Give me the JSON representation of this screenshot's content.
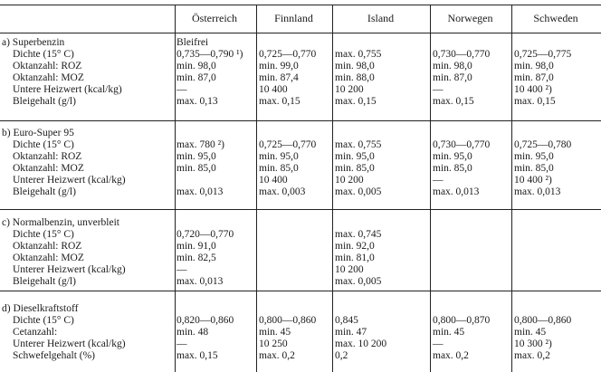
{
  "columns": [
    "Österreich",
    "Finnland",
    "Island",
    "Norwegen",
    "Schweden"
  ],
  "sections": [
    {
      "labels": [
        "a) Superbenzin",
        "Dichte (15° C)",
        "Oktanzahl: ROZ",
        "Oktanzahl: MOZ",
        "Untere Heizwert (kcal/kg)",
        "Bleigehalt (g/l)"
      ],
      "values": [
        [
          "Bleifrei",
          "0,735—0,790 ¹)",
          "min. 98,0",
          "min. 87,0",
          "—",
          "max. 0,13"
        ],
        [
          "",
          "0,725—0,770",
          "min. 99,0",
          "min. 87,4",
          "10 400",
          "max. 0,15"
        ],
        [
          "",
          "max. 0,755",
          "min. 98,0",
          "min. 88,0",
          "10 200",
          "max. 0,15"
        ],
        [
          "",
          "0,730—0,770",
          "min. 98,0",
          "min. 87,0",
          "—",
          "max. 0,15"
        ],
        [
          "",
          "0,725—0,775",
          "min. 98,0",
          "min. 87,0",
          "10 400 ²)",
          "max. 0,15"
        ]
      ]
    },
    {
      "labels": [
        "b) Euro-Super 95",
        "Dichte (15° C)",
        "Oktanzahl: ROZ",
        "Oktanzahl: MOZ",
        "Unterer Heizwert (kcal/kg)",
        "Bleigehalt (g/l)"
      ],
      "values": [
        [
          "",
          "max. 780 ²)",
          "min. 95,0",
          "min. 85,0",
          "",
          "max. 0,013"
        ],
        [
          "",
          "0,725—0,770",
          "min. 95,0",
          "min. 85,0",
          "10 400",
          "max. 0,003"
        ],
        [
          "",
          "max. 0,755",
          "min. 95,0",
          "min. 85,0",
          "10 200",
          "max. 0,005"
        ],
        [
          "",
          "0,730—0,770",
          "min. 95,0",
          "min. 85,0",
          "—",
          "max. 0,013"
        ],
        [
          "",
          "0,725—0,780",
          "min. 95,0",
          "min. 85,0",
          "10 400 ²)",
          "max. 0,013"
        ]
      ]
    },
    {
      "labels": [
        "c) Normalbenzin, unverbleit",
        "Dichte (15° C)",
        "Oktanzahl: ROZ",
        "Oktanzahl: MOZ",
        "Unterer Heizwert (kcal/kg)",
        "Bleigehalt (g/l)"
      ],
      "values": [
        [
          "",
          "0,720—0,770",
          "min. 91,0",
          "min. 82,5",
          "—",
          "max. 0,013"
        ],
        [
          "",
          "",
          "",
          "",
          "",
          ""
        ],
        [
          "",
          "max. 0,745",
          "min. 92,0",
          "min. 81,0",
          "10 200",
          "max. 0,005"
        ],
        [
          "",
          "",
          "",
          "",
          "",
          ""
        ],
        [
          "",
          "",
          "",
          "",
          "",
          ""
        ]
      ]
    },
    {
      "labels": [
        "d) Dieselkraftstoff",
        "Dichte (15° C)",
        "Cetanzahl:",
        "Unterer Heizwert (kcal/kg)",
        "Schwefelgehalt (%)"
      ],
      "values": [
        [
          "",
          "0,820—0,860",
          "min. 48",
          "—",
          "max. 0,15"
        ],
        [
          "",
          "0,800—0,860",
          "min. 45",
          "10 250",
          "max. 0,2"
        ],
        [
          "",
          "0,845",
          "min. 47",
          "max. 10 200",
          "0,2"
        ],
        [
          "",
          "0,800—0,870",
          "min. 45",
          "—",
          "max. 0,2"
        ],
        [
          "",
          "0,800—0,860",
          "min. 45",
          "10 300 ²)",
          "max. 0,2"
        ]
      ]
    }
  ]
}
